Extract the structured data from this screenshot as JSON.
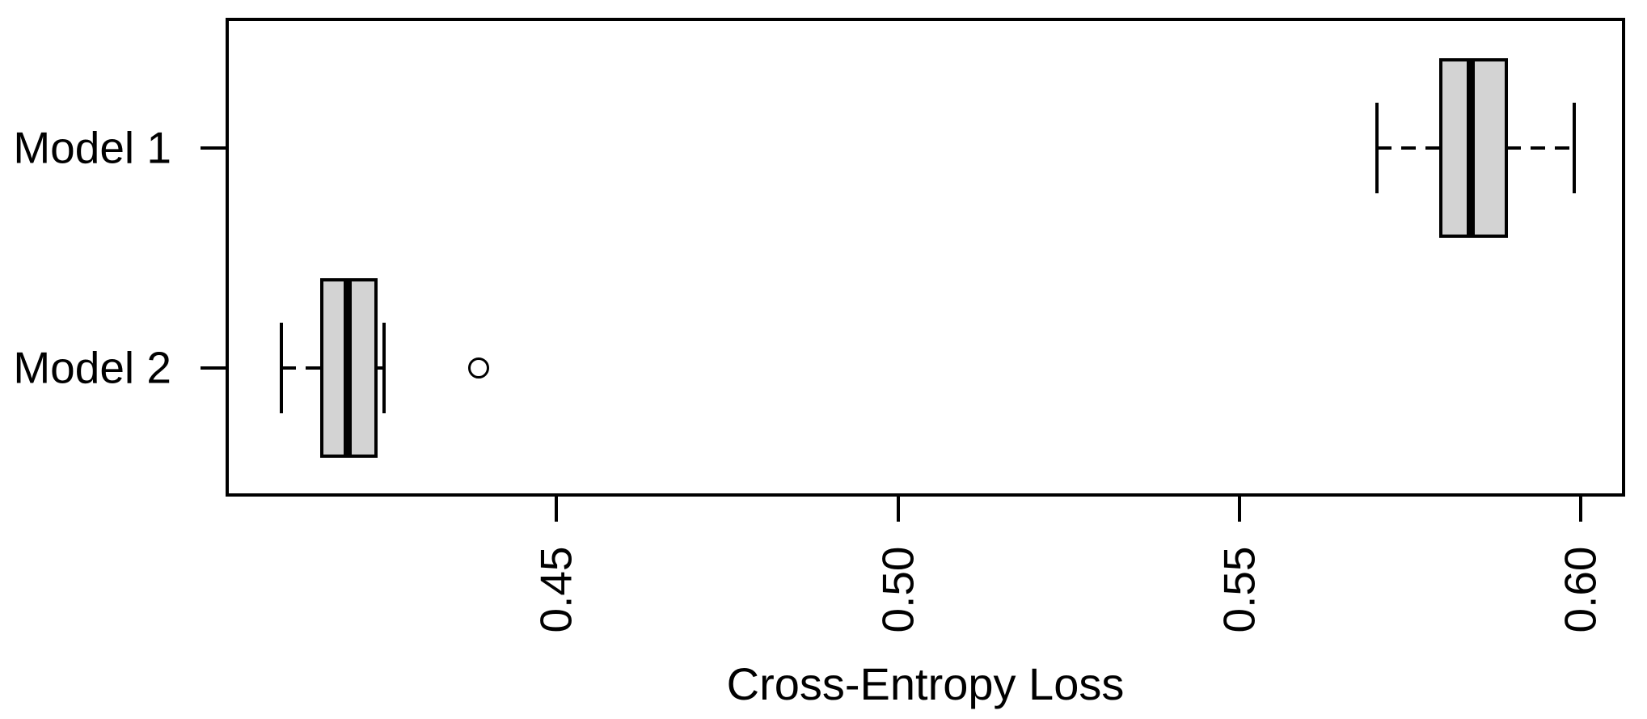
{
  "chart_data": {
    "type": "boxplot",
    "orientation": "horizontal",
    "title": "",
    "xlabel": "Cross-Entropy Loss",
    "ylabel": "",
    "xlim": [
      0.4018,
      0.6064
    ],
    "x_ticks": [
      0.45,
      0.5,
      0.55,
      0.6
    ],
    "x_tick_labels": [
      "0.45",
      "0.50",
      "0.55",
      "0.60"
    ],
    "x_tick_label_rotation_deg": -90,
    "categories": [
      "Model 1",
      "Model 2"
    ],
    "series": [
      {
        "name": "Model 1",
        "whisker_low": 0.5701,
        "q1": 0.5795,
        "median": 0.5839,
        "q3": 0.589,
        "whisker_high": 0.599,
        "outliers": []
      },
      {
        "name": "Model 2",
        "whisker_low": 0.4098,
        "q1": 0.4157,
        "median": 0.4195,
        "q3": 0.4236,
        "whisker_high": 0.4248,
        "outliers": [
          0.4386
        ]
      }
    ],
    "colors": {
      "box_fill": "#d3d3d3",
      "line": "#000000",
      "background": "#ffffff"
    },
    "grid": false,
    "legend": null,
    "whisker_line_style": "dashed"
  }
}
